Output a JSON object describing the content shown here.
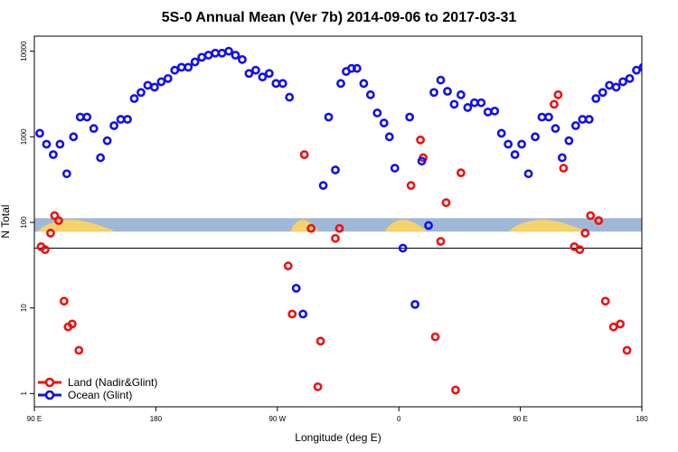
{
  "chart_data": {
    "type": "scatter",
    "title": "5S-0 Annual Mean (Ver 7b)   2014-09-06 to 2017-03-31",
    "xlabel": "Longitude (deg E)",
    "ylabel": "N Total",
    "xlim": [
      90,
      540
    ],
    "ylim": [
      0.7,
      15000
    ],
    "yscale": "log",
    "grid": false,
    "x_ticks": [
      {
        "value": 90,
        "label": "90 E"
      },
      {
        "value": 180,
        "label": "180"
      },
      {
        "value": 270,
        "label": "90 W"
      },
      {
        "value": 360,
        "label": "0"
      },
      {
        "value": 450,
        "label": "90 E"
      },
      {
        "value": 540,
        "label": "180"
      }
    ],
    "y_ticks": [
      {
        "value": 1,
        "label": "1"
      },
      {
        "value": 10,
        "label": "10"
      },
      {
        "value": 100,
        "label": "100"
      },
      {
        "value": 1000,
        "label": "1000"
      },
      {
        "value": 10000,
        "label": "10000"
      }
    ],
    "reference_line": 50,
    "band": {
      "ymin": 78,
      "ymax": 112,
      "color": "#9fb8d8",
      "land_color": "#f5d36a",
      "land_ranges": [
        [
          93,
          148
        ],
        [
          280,
          300
        ],
        [
          350,
          380
        ],
        [
          442,
          497
        ]
      ]
    },
    "legend_position": "bottom-left",
    "series": [
      {
        "name": "Land (Nadir&Glint)",
        "color": "#ee1111",
        "x": [
          95,
          98,
          102,
          105,
          108,
          112,
          115,
          118,
          123,
          278,
          281,
          290,
          295,
          300,
          302,
          313,
          316,
          369,
          376,
          378,
          387,
          391,
          395,
          402,
          406,
          475,
          478,
          482,
          490,
          494,
          498,
          502,
          508,
          513,
          519,
          524,
          529
        ],
        "y": [
          52,
          48,
          75,
          120,
          105,
          12,
          6,
          6.5,
          3.2,
          31,
          8.5,
          620,
          85,
          1.2,
          4.1,
          65,
          85,
          270,
          920,
          570,
          4.6,
          60,
          170,
          1.1,
          380,
          2400,
          3100,
          430,
          52,
          48,
          75,
          120,
          105,
          12,
          6,
          6.5,
          3.2
        ]
      },
      {
        "name": "Ocean (Glint)",
        "color": "#1111ee",
        "x": [
          94,
          99,
          104,
          109,
          114,
          119,
          124,
          129,
          134,
          139,
          144,
          149,
          154,
          159,
          164,
          169,
          174,
          179,
          184,
          189,
          194,
          199,
          204,
          209,
          214,
          219,
          224,
          229,
          234,
          239,
          244,
          249,
          254,
          259,
          264,
          269,
          274,
          279,
          284,
          289,
          304,
          308,
          313,
          317,
          321,
          325,
          329,
          334,
          339,
          344,
          349,
          353,
          357,
          363,
          368,
          372,
          377,
          382,
          386,
          391,
          396,
          401,
          406,
          411,
          416,
          421,
          426,
          431,
          436,
          441,
          446,
          451,
          456,
          461,
          466,
          471,
          476,
          481,
          486,
          491,
          496,
          501,
          506,
          511,
          516,
          521,
          526,
          531,
          536,
          541
        ],
        "y": [
          1100,
          820,
          620,
          820,
          370,
          1000,
          1700,
          1700,
          1250,
          570,
          900,
          1350,
          1600,
          1600,
          2800,
          3300,
          4000,
          3800,
          4400,
          4800,
          6000,
          6500,
          6500,
          7500,
          8500,
          9000,
          9500,
          9500,
          10000,
          9000,
          8000,
          5500,
          6000,
          5000,
          5500,
          4200,
          4200,
          2900,
          17,
          8.5,
          270,
          1700,
          410,
          4200,
          5800,
          6300,
          6300,
          4200,
          3100,
          1900,
          1450,
          1000,
          430,
          50,
          1700,
          11,
          520,
          92,
          3300,
          4600,
          3400,
          2400,
          3100,
          2200,
          2500,
          2500,
          1950,
          2000,
          1100,
          820,
          620,
          820,
          370,
          1000,
          1700,
          1700,
          1250,
          570,
          900,
          1350,
          1600,
          1600,
          2800,
          3300,
          4000,
          3800,
          4400,
          4800,
          6000,
          6500
        ]
      }
    ]
  }
}
